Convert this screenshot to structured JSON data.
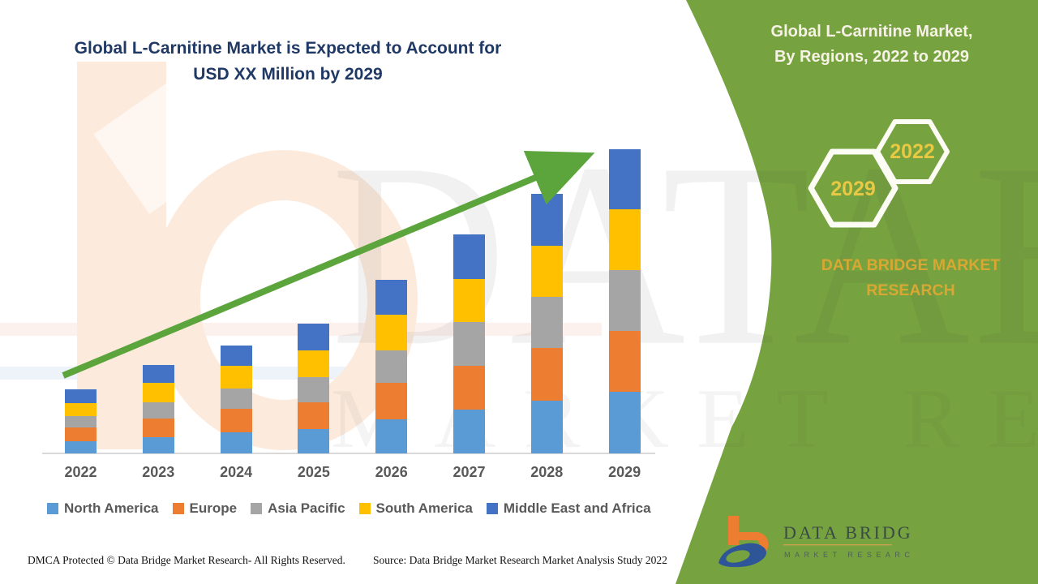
{
  "header": {
    "title_line1": "Global L-Carnitine Market is Expected to Account for",
    "title_line2": "USD XX Million by 2029"
  },
  "panel": {
    "title_line1": "Global L-Carnitine Market,",
    "title_line2": "By Regions, 2022 to 2029",
    "hexagons": [
      {
        "label": "2029"
      },
      {
        "label": "2022"
      }
    ],
    "brand_line1": "DATA BRIDGE MARKET",
    "brand_line2": "RESEARCH",
    "accent_green": "#76A33F",
    "accent_gold": "#D9A733"
  },
  "logo": {
    "name": "DATA BRIDGE",
    "tagline": "MARKET RESEARCH",
    "mark_orange": "#ED7D31",
    "mark_navy": "#2E5597"
  },
  "chart_data": {
    "type": "bar",
    "stacked": true,
    "title": "Global L-Carnitine Market is Expected to Account for USD XX Million by 2029",
    "xlabel": "",
    "ylabel": "",
    "y_axis_shown": false,
    "note": "values are relative size estimates read from bar pixel heights (no y-axis scale shown; totals labelled as USD XX Million)",
    "legend_position": "bottom",
    "grid": false,
    "categories": [
      "2022",
      "2023",
      "2024",
      "2025",
      "2026",
      "2027",
      "2028",
      "2029"
    ],
    "series": [
      {
        "name": "North America",
        "color": "#5B9BD5",
        "values": [
          15,
          20,
          26,
          30,
          42,
          54,
          65,
          76
        ]
      },
      {
        "name": "Europe",
        "color": "#ED7D31",
        "values": [
          17,
          23,
          29,
          33,
          45,
          54,
          65,
          75
        ]
      },
      {
        "name": "Asia Pacific",
        "color": "#A5A5A5",
        "values": [
          14,
          20,
          25,
          31,
          40,
          54,
          63,
          75
        ]
      },
      {
        "name": "South America",
        "color": "#FFC000",
        "values": [
          16,
          24,
          28,
          33,
          44,
          53,
          63,
          75
        ]
      },
      {
        "name": "Middle East and Africa",
        "color": "#4472C4",
        "values": [
          17,
          22,
          25,
          33,
          43,
          55,
          64,
          74
        ]
      }
    ],
    "totals": [
      79,
      109,
      133,
      160,
      214,
      270,
      320,
      375
    ],
    "trend_arrow": {
      "color": "#5CA43C",
      "from_category": "2022",
      "to_category": "2029"
    }
  },
  "footer": {
    "left": "DMCA Protected © Data Bridge Market Research- All Rights Reserved.",
    "right": "Source: Data Bridge Market Research Market Analysis Study 2022"
  },
  "watermarks": {
    "big_text": "DATABRIDGE",
    "tagline": "MARKET RESEARCH",
    "logo_letter": "b"
  }
}
